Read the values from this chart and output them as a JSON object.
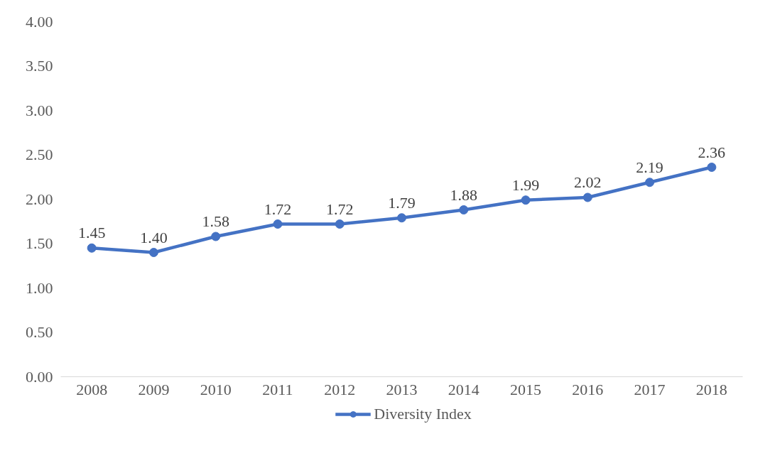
{
  "chart_data": {
    "type": "line",
    "categories": [
      "2008",
      "2009",
      "2010",
      "2011",
      "2012",
      "2013",
      "2014",
      "2015",
      "2016",
      "2017",
      "2018"
    ],
    "series": [
      {
        "name": "Diversity Index",
        "color": "#4472c4",
        "values": [
          1.45,
          1.4,
          1.58,
          1.72,
          1.72,
          1.79,
          1.88,
          1.99,
          2.02,
          2.19,
          2.36
        ],
        "value_labels": [
          "1.45",
          "1.40",
          "1.58",
          "1.72",
          "1.72",
          "1.79",
          "1.88",
          "1.99",
          "2.02",
          "2.19",
          "2.36"
        ]
      }
    ],
    "ylim": [
      0,
      4
    ],
    "yticks": [
      {
        "value": 0,
        "label": "0.00"
      },
      {
        "value": 0.5,
        "label": "0.50"
      },
      {
        "value": 1,
        "label": "1.00"
      },
      {
        "value": 1.5,
        "label": "1.50"
      },
      {
        "value": 2,
        "label": "2.00"
      },
      {
        "value": 2.5,
        "label": "2.50"
      },
      {
        "value": 3,
        "label": "3.00"
      },
      {
        "value": 3.5,
        "label": "3.50"
      },
      {
        "value": 4,
        "label": "4.00"
      }
    ],
    "grid": false,
    "legend": "bottom",
    "marker": "circle",
    "line_style": "solid"
  }
}
